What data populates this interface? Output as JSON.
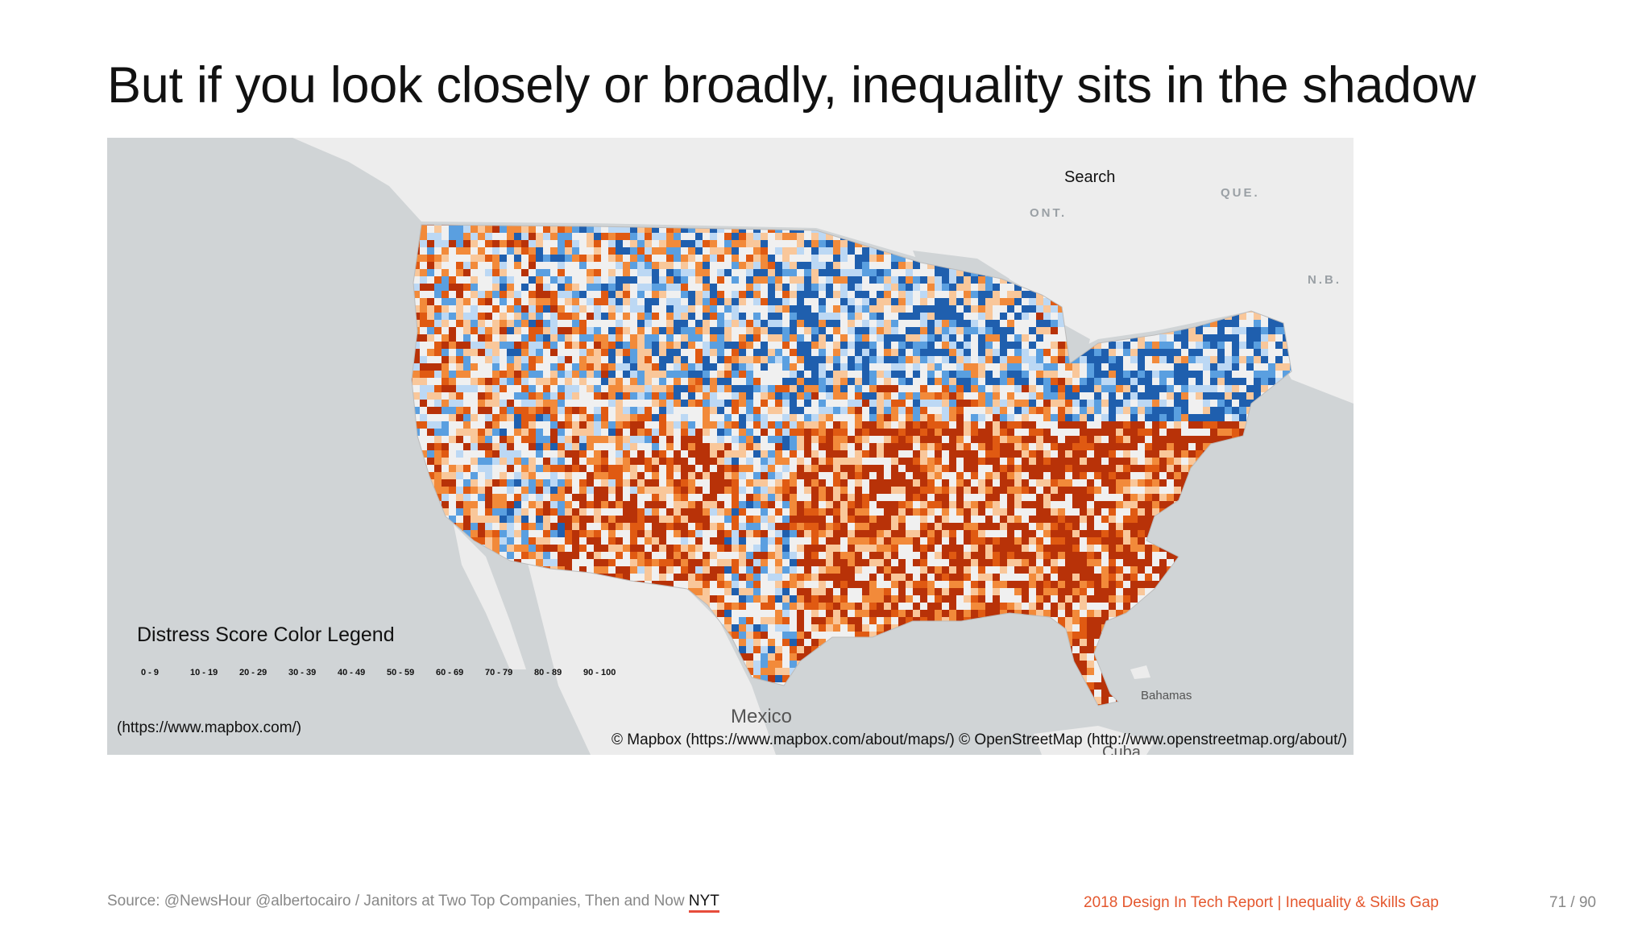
{
  "slide": {
    "title": "But if you look closely or broadly, inequality sits in the shadow"
  },
  "map": {
    "search_label": "Search",
    "region_labels": [
      "QUE.",
      "ONT.",
      "N.B."
    ],
    "place_labels": {
      "mexico": "Mexico",
      "bahamas": "Bahamas",
      "cuba": "Cuba"
    },
    "legend": {
      "title": "Distress Score Color Legend",
      "ranges": [
        "0 - 9",
        "10 - 19",
        "20 - 29",
        "30 - 39",
        "40 - 49",
        "50 - 59",
        "60 - 69",
        "70 - 79",
        "80 - 89",
        "90 - 100"
      ]
    },
    "colors": {
      "low_distress": "#1f5fae",
      "mid_blue": "#5a9fe0",
      "light_blue": "#bcd8f4",
      "neutral": "#f0f0f0",
      "light_orange": "#f9c79a",
      "orange": "#f28a3a",
      "high_distress": "#e05a12",
      "severe_distress": "#b83208",
      "land": "#ececec",
      "water": "#d0d4d6"
    },
    "mapbox_link": "(https://www.mapbox.com/)",
    "attribution": "© Mapbox (https://www.mapbox.com/about/maps/) © OpenStreetMap (http://www.openstreetmap.org/about/)"
  },
  "footer": {
    "source_prefix": "Source: @NewsHour @albertocairo / Janitors at Two Top Companies, Then and Now ",
    "source_link": "NYT",
    "report": "2018 Design In Tech Report | Inequality & Skills Gap",
    "page": "71 / 90"
  }
}
